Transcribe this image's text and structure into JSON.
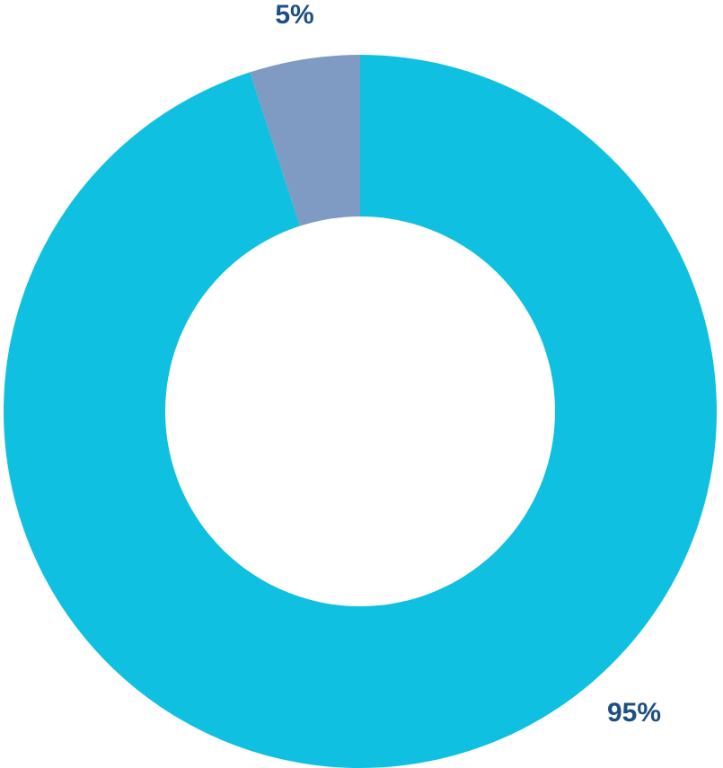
{
  "chart_data": {
    "type": "donut",
    "values": [
      95,
      5
    ],
    "value_labels": [
      "95%",
      "5%"
    ],
    "colors": [
      "#0fc0e0",
      "#7f9bc4"
    ]
  }
}
